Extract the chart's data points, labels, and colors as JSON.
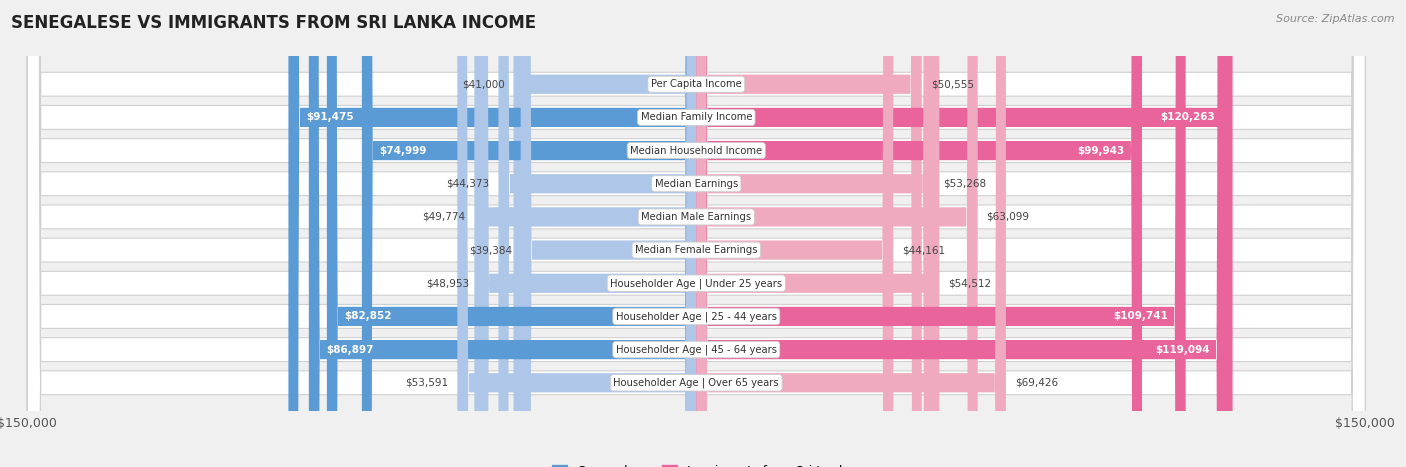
{
  "title": "SENEGALESE VS IMMIGRANTS FROM SRI LANKA INCOME",
  "source": "Source: ZipAtlas.com",
  "categories": [
    "Per Capita Income",
    "Median Family Income",
    "Median Household Income",
    "Median Earnings",
    "Median Male Earnings",
    "Median Female Earnings",
    "Householder Age | Under 25 years",
    "Householder Age | 25 - 44 years",
    "Householder Age | 45 - 64 years",
    "Householder Age | Over 65 years"
  ],
  "senegalese_values": [
    41000,
    91475,
    74999,
    44373,
    49774,
    39384,
    48953,
    82852,
    86897,
    53591
  ],
  "srilanka_values": [
    50555,
    120263,
    99943,
    53268,
    63099,
    44161,
    54512,
    109741,
    119094,
    69426
  ],
  "senegalese_labels": [
    "$41,000",
    "$91,475",
    "$74,999",
    "$44,373",
    "$49,774",
    "$39,384",
    "$48,953",
    "$82,852",
    "$86,897",
    "$53,591"
  ],
  "srilanka_labels": [
    "$50,555",
    "$120,263",
    "$99,943",
    "$53,268",
    "$63,099",
    "$44,161",
    "$54,512",
    "$109,741",
    "$119,094",
    "$69,426"
  ],
  "sen_color_dark": "#5b9bd5",
  "sen_color_light": "#aec6e8",
  "sri_color_dark": "#e8649a",
  "sri_color_light": "#f0aac0",
  "dark_threshold": 70000,
  "max_value": 150000,
  "background_color": "#f0f0f0",
  "row_bg_color": "#ffffff",
  "row_border_color": "#d0d0d0",
  "legend_senegalese": "Senegalese",
  "legend_srilanka": "Immigrants from Sri Lanka"
}
